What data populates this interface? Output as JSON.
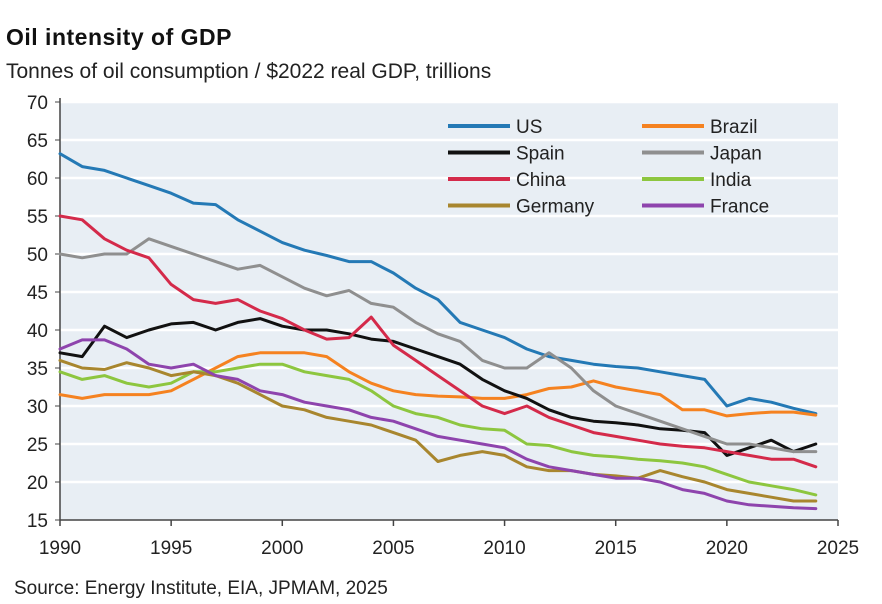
{
  "chart_data": {
    "type": "line",
    "title": "Oil intensity of GDP",
    "subtitle": "Tonnes of oil consumption / $2022 real GDP, trillions",
    "source": "Source: Energy Institute, EIA, JPMAM, 2025",
    "xlabel": "",
    "ylabel": "",
    "xlim": [
      1990,
      2025
    ],
    "ylim": [
      15,
      70
    ],
    "xticks": [
      1990,
      1995,
      2000,
      2005,
      2010,
      2015,
      2020,
      2025
    ],
    "yticks": [
      15,
      20,
      25,
      30,
      35,
      40,
      45,
      50,
      55,
      60,
      65,
      70
    ],
    "grid": true,
    "legend_position": "top-right",
    "x": [
      1990,
      1991,
      1992,
      1993,
      1994,
      1995,
      1996,
      1997,
      1998,
      1999,
      2000,
      2001,
      2002,
      2003,
      2004,
      2005,
      2006,
      2007,
      2008,
      2009,
      2010,
      2011,
      2012,
      2013,
      2014,
      2015,
      2016,
      2017,
      2018,
      2019,
      2020,
      2021,
      2022,
      2023,
      2024
    ],
    "series": [
      {
        "name": "US",
        "color": "#2479b5",
        "values": [
          63.2,
          61.5,
          61,
          60,
          59,
          58,
          56.7,
          56.5,
          54.5,
          53,
          51.5,
          50.5,
          49.8,
          49,
          49,
          47.5,
          45.5,
          44,
          41,
          40,
          39,
          37.5,
          36.5,
          36,
          35.5,
          35.2,
          35,
          34.5,
          34,
          33.5,
          30,
          31,
          30.5,
          29.7,
          29
        ]
      },
      {
        "name": "Brazil",
        "color": "#f58220",
        "values": [
          31.5,
          31,
          31.5,
          31.5,
          31.5,
          32,
          33.5,
          35,
          36.5,
          37,
          37,
          37,
          36.5,
          34.5,
          33,
          32,
          31.5,
          31.3,
          31.2,
          31,
          31,
          31.5,
          32.3,
          32.5,
          33.3,
          32.5,
          32,
          31.5,
          29.5,
          29.5,
          28.7,
          29,
          29.2,
          29.2,
          28.8
        ]
      },
      {
        "name": "Spain",
        "color": "#111111",
        "values": [
          37,
          36.5,
          40.5,
          39,
          40,
          40.8,
          41,
          40,
          41,
          41.5,
          40.5,
          40,
          40,
          39.5,
          38.8,
          38.5,
          37.5,
          36.5,
          35.5,
          33.5,
          32,
          31,
          29.5,
          28.5,
          28,
          27.8,
          27.5,
          27,
          26.8,
          26.5,
          23.5,
          24.5,
          25.5,
          24,
          25
        ]
      },
      {
        "name": "Japan",
        "color": "#8f8f8f",
        "values": [
          50,
          49.5,
          50,
          50,
          52,
          51,
          50,
          49,
          48,
          48.5,
          47,
          45.5,
          44.5,
          45.2,
          43.5,
          43,
          41,
          39.5,
          38.5,
          36,
          35,
          35,
          37,
          35,
          32,
          30,
          29,
          28,
          27,
          26,
          25,
          25,
          24.5,
          24,
          24
        ]
      },
      {
        "name": "China",
        "color": "#d42a4a",
        "values": [
          55,
          54.5,
          52,
          50.5,
          49.5,
          46,
          44,
          43.5,
          44,
          42.5,
          41.5,
          40,
          38.8,
          39,
          41.7,
          38,
          36,
          34,
          32,
          30,
          29,
          30,
          28.5,
          27.5,
          26.5,
          26,
          25.5,
          25,
          24.7,
          24.5,
          24,
          23.5,
          23,
          23,
          22
        ]
      },
      {
        "name": "India",
        "color": "#8dc63f",
        "values": [
          34.5,
          33.5,
          34,
          33,
          32.5,
          33,
          34.5,
          34.5,
          35,
          35.5,
          35.5,
          34.5,
          34,
          33.5,
          32,
          30,
          29,
          28.5,
          27.5,
          27,
          26.8,
          25,
          24.8,
          24,
          23.5,
          23.3,
          23,
          22.8,
          22.5,
          22,
          21,
          20,
          19.5,
          19,
          18.3
        ]
      },
      {
        "name": "Germany",
        "color": "#a8862e",
        "values": [
          36,
          35,
          34.8,
          35.7,
          35,
          34,
          34.5,
          34,
          33,
          31.5,
          30,
          29.5,
          28.5,
          28,
          27.5,
          26.5,
          25.5,
          22.7,
          23.5,
          24,
          23.5,
          22,
          21.5,
          21.5,
          21,
          20.8,
          20.5,
          21.5,
          20.7,
          20,
          19,
          18.5,
          18,
          17.5,
          17.5
        ]
      },
      {
        "name": "France",
        "color": "#8e44ad",
        "values": [
          37.5,
          38.7,
          38.7,
          37.5,
          35.5,
          35,
          35.5,
          34,
          33.5,
          32,
          31.5,
          30.5,
          30,
          29.5,
          28.5,
          28,
          27,
          26,
          25.5,
          25,
          24.5,
          23,
          22,
          21.5,
          21,
          20.5,
          20.5,
          20,
          19,
          18.5,
          17.5,
          17,
          16.8,
          16.6,
          16.5
        ]
      }
    ]
  }
}
